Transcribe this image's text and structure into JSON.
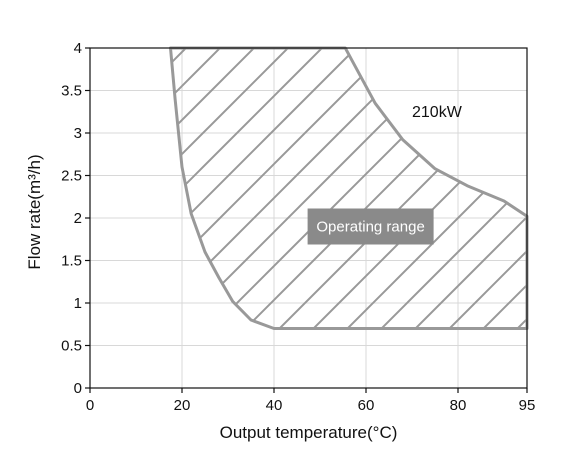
{
  "chart_data": {
    "type": "area",
    "xlabel": "Output temperature(°C)",
    "ylabel": "Flow rate(m³/h)",
    "xlim": [
      0,
      95
    ],
    "ylim": [
      0,
      4
    ],
    "xticks": [
      0,
      20,
      40,
      60,
      80,
      95
    ],
    "yticks": [
      0,
      0.5,
      1,
      1.5,
      2,
      2.5,
      3,
      3.5,
      4
    ],
    "xtick_labels": [
      "0",
      "20",
      "40",
      "60",
      "80",
      "95"
    ],
    "ytick_labels": [
      "0",
      "0.5",
      "1",
      "1.5",
      "2",
      "2.5",
      "3",
      "3.5",
      "4"
    ],
    "grid": true,
    "hatched": true,
    "boundary": {
      "x": [
        17.5,
        18.5,
        20,
        22,
        25,
        28,
        31,
        35,
        40,
        55,
        95,
        95,
        90,
        82,
        75,
        68,
        62,
        57,
        55.5,
        17.5
      ],
      "y": [
        4,
        3.4,
        2.6,
        2.05,
        1.6,
        1.3,
        1.02,
        0.8,
        0.7,
        0.7,
        0.7,
        2.02,
        2.2,
        2.38,
        2.58,
        2.92,
        3.35,
        3.85,
        4,
        4
      ]
    },
    "annotations": [
      {
        "label": "210kW",
        "x": 70,
        "y": 3.25
      },
      {
        "label": "Operating range",
        "x": 61,
        "y": 1.9,
        "style": "badge"
      }
    ]
  },
  "colors": {
    "boundary": "#999999",
    "hatch": "#999999",
    "grid": "#d8d8d8",
    "badge": "#8a8a8a",
    "axis": "#111111"
  }
}
